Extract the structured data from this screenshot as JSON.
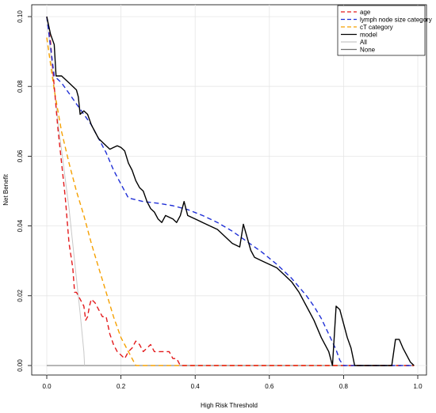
{
  "chart_data": {
    "type": "line",
    "xlabel": "High Risk Threshold",
    "ylabel": "Net Benefit",
    "xlim": [
      0,
      1
    ],
    "ylim": [
      0,
      0.1
    ],
    "x_ticks": [
      "0.0",
      "0.2",
      "0.4",
      "0.6",
      "0.8",
      "1.0"
    ],
    "y_ticks": [
      "0.00",
      "0.02",
      "0.04",
      "0.06",
      "0.08",
      "0.10"
    ],
    "grid": true,
    "legend_position": "top-right",
    "series": [
      {
        "name": "age",
        "color": "#e31a1c",
        "dash": "dashed",
        "points": [
          [
            0.0,
            0.1
          ],
          [
            0.01,
            0.093
          ],
          [
            0.02,
            0.08
          ],
          [
            0.03,
            0.068
          ],
          [
            0.04,
            0.058
          ],
          [
            0.05,
            0.048
          ],
          [
            0.06,
            0.035
          ],
          [
            0.07,
            0.028
          ],
          [
            0.075,
            0.021
          ],
          [
            0.08,
            0.021
          ],
          [
            0.09,
            0.019
          ],
          [
            0.1,
            0.017
          ],
          [
            0.105,
            0.013
          ],
          [
            0.11,
            0.014
          ],
          [
            0.115,
            0.017
          ],
          [
            0.12,
            0.019
          ],
          [
            0.13,
            0.018
          ],
          [
            0.14,
            0.016
          ],
          [
            0.15,
            0.014
          ],
          [
            0.16,
            0.014
          ],
          [
            0.17,
            0.009
          ],
          [
            0.18,
            0.006
          ],
          [
            0.19,
            0.004
          ],
          [
            0.2,
            0.003
          ],
          [
            0.21,
            0.002
          ],
          [
            0.22,
            0.004
          ],
          [
            0.23,
            0.005
          ],
          [
            0.24,
            0.007
          ],
          [
            0.25,
            0.006
          ],
          [
            0.26,
            0.004
          ],
          [
            0.27,
            0.005
          ],
          [
            0.28,
            0.006
          ],
          [
            0.29,
            0.004
          ],
          [
            0.3,
            0.004
          ],
          [
            0.31,
            0.004
          ],
          [
            0.32,
            0.004
          ],
          [
            0.33,
            0.004
          ],
          [
            0.34,
            0.002
          ],
          [
            0.35,
            0.002
          ],
          [
            0.36,
            0.0
          ],
          [
            0.99,
            0.0
          ]
        ]
      },
      {
        "name": "lymph node size category",
        "color": "#1f2fd6",
        "dash": "dashed",
        "points": [
          [
            0.0,
            0.1
          ],
          [
            0.02,
            0.083
          ],
          [
            0.04,
            0.081
          ],
          [
            0.06,
            0.078
          ],
          [
            0.08,
            0.075
          ],
          [
            0.1,
            0.072
          ],
          [
            0.12,
            0.069
          ],
          [
            0.14,
            0.065
          ],
          [
            0.16,
            0.061
          ],
          [
            0.18,
            0.056
          ],
          [
            0.2,
            0.052
          ],
          [
            0.22,
            0.048
          ],
          [
            0.26,
            0.047
          ],
          [
            0.3,
            0.0465
          ],
          [
            0.34,
            0.0458
          ],
          [
            0.38,
            0.0447
          ],
          [
            0.42,
            0.043
          ],
          [
            0.46,
            0.041
          ],
          [
            0.5,
            0.0385
          ],
          [
            0.54,
            0.0355
          ],
          [
            0.58,
            0.0325
          ],
          [
            0.62,
            0.029
          ],
          [
            0.66,
            0.025
          ],
          [
            0.7,
            0.02
          ],
          [
            0.72,
            0.017
          ],
          [
            0.74,
            0.0135
          ],
          [
            0.76,
            0.009
          ],
          [
            0.78,
            0.0045
          ],
          [
            0.79,
            0.0015
          ],
          [
            0.8,
            0.0
          ],
          [
            0.99,
            0.0
          ]
        ]
      },
      {
        "name": "cT category",
        "color": "#f5a000",
        "dash": "dashed",
        "points": [
          [
            0.0,
            0.094
          ],
          [
            0.02,
            0.079
          ],
          [
            0.04,
            0.067
          ],
          [
            0.06,
            0.058
          ],
          [
            0.08,
            0.05
          ],
          [
            0.1,
            0.043
          ],
          [
            0.12,
            0.035
          ],
          [
            0.14,
            0.028
          ],
          [
            0.16,
            0.021
          ],
          [
            0.18,
            0.014
          ],
          [
            0.2,
            0.008
          ],
          [
            0.22,
            0.004
          ],
          [
            0.24,
            0.0
          ],
          [
            0.99,
            0.0
          ]
        ]
      },
      {
        "name": "model",
        "color": "#000000",
        "dash": "solid",
        "points": [
          [
            0.0,
            0.1
          ],
          [
            0.01,
            0.095
          ],
          [
            0.02,
            0.092
          ],
          [
            0.025,
            0.083
          ],
          [
            0.04,
            0.083
          ],
          [
            0.06,
            0.081
          ],
          [
            0.08,
            0.079
          ],
          [
            0.085,
            0.077
          ],
          [
            0.09,
            0.072
          ],
          [
            0.1,
            0.073
          ],
          [
            0.11,
            0.072
          ],
          [
            0.12,
            0.069
          ],
          [
            0.13,
            0.067
          ],
          [
            0.14,
            0.065
          ],
          [
            0.15,
            0.064
          ],
          [
            0.16,
            0.063
          ],
          [
            0.17,
            0.062
          ],
          [
            0.18,
            0.0625
          ],
          [
            0.19,
            0.063
          ],
          [
            0.2,
            0.0625
          ],
          [
            0.21,
            0.0615
          ],
          [
            0.22,
            0.058
          ],
          [
            0.23,
            0.056
          ],
          [
            0.24,
            0.053
          ],
          [
            0.25,
            0.051
          ],
          [
            0.26,
            0.05
          ],
          [
            0.27,
            0.047
          ],
          [
            0.28,
            0.045
          ],
          [
            0.29,
            0.044
          ],
          [
            0.3,
            0.042
          ],
          [
            0.31,
            0.041
          ],
          [
            0.32,
            0.043
          ],
          [
            0.34,
            0.042
          ],
          [
            0.35,
            0.041
          ],
          [
            0.36,
            0.043
          ],
          [
            0.37,
            0.047
          ],
          [
            0.38,
            0.043
          ],
          [
            0.4,
            0.042
          ],
          [
            0.42,
            0.041
          ],
          [
            0.44,
            0.04
          ],
          [
            0.46,
            0.039
          ],
          [
            0.48,
            0.037
          ],
          [
            0.5,
            0.035
          ],
          [
            0.52,
            0.034
          ],
          [
            0.53,
            0.0405
          ],
          [
            0.55,
            0.033
          ],
          [
            0.56,
            0.031
          ],
          [
            0.58,
            0.03
          ],
          [
            0.6,
            0.029
          ],
          [
            0.62,
            0.028
          ],
          [
            0.64,
            0.026
          ],
          [
            0.66,
            0.024
          ],
          [
            0.68,
            0.021
          ],
          [
            0.7,
            0.017
          ],
          [
            0.72,
            0.013
          ],
          [
            0.74,
            0.008
          ],
          [
            0.76,
            0.004
          ],
          [
            0.77,
            0.0
          ],
          [
            0.78,
            0.017
          ],
          [
            0.79,
            0.016
          ],
          [
            0.8,
            0.012
          ],
          [
            0.81,
            0.008
          ],
          [
            0.82,
            0.005
          ],
          [
            0.83,
            0.0
          ],
          [
            0.84,
            0.0
          ],
          [
            0.93,
            0.0
          ],
          [
            0.94,
            0.0075
          ],
          [
            0.95,
            0.0075
          ],
          [
            0.96,
            0.005
          ],
          [
            0.98,
            0.001
          ],
          [
            0.99,
            0.0
          ]
        ]
      },
      {
        "name": "All",
        "color": "#c8c8c8",
        "dash": "solid",
        "points": [
          [
            0.0,
            0.1
          ],
          [
            0.03,
            0.07
          ],
          [
            0.06,
            0.045
          ],
          [
            0.08,
            0.025
          ],
          [
            0.09,
            0.015
          ],
          [
            0.1,
            0.004
          ],
          [
            0.102,
            0.0
          ]
        ]
      },
      {
        "name": "None",
        "color": "#6e6e6e",
        "dash": "solid",
        "points": [
          [
            0.0,
            0.0
          ],
          [
            0.99,
            0.0
          ]
        ]
      }
    ]
  }
}
